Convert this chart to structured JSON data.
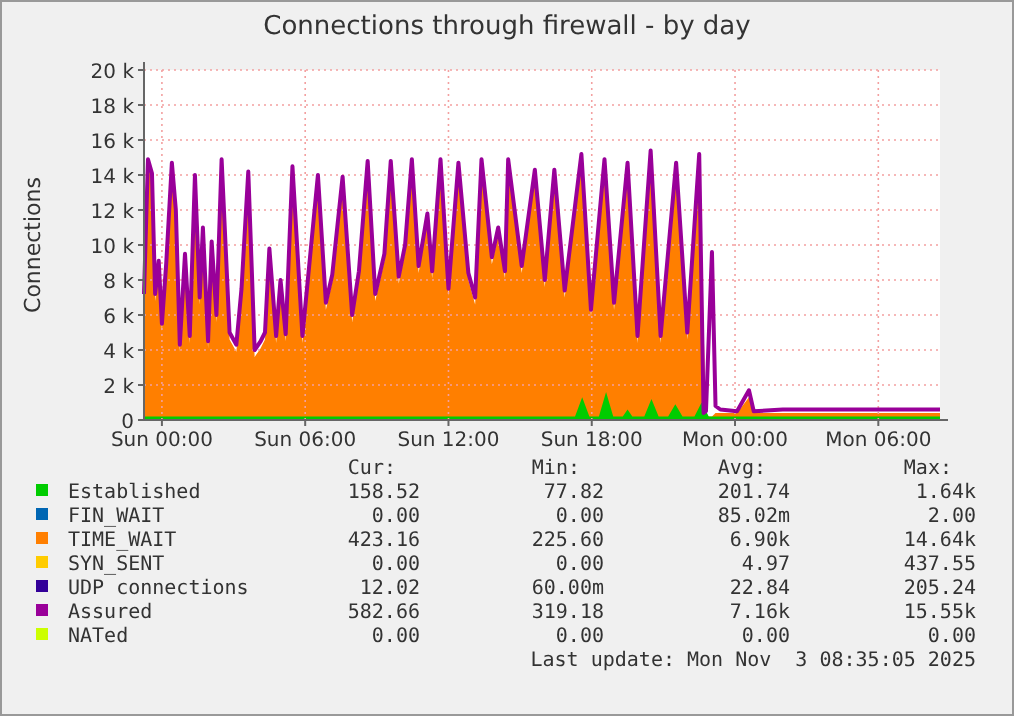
{
  "chart_data": {
    "type": "area",
    "title": "Connections through firewall - by day",
    "ylabel": "Connections",
    "xlim": [
      "2025-11-01T23:15",
      "2025-11-03T08:35"
    ],
    "xticks": [
      {
        "value": "2025-11-02T00:00",
        "label": "Sun 00:00"
      },
      {
        "value": "2025-11-02T06:00",
        "label": "Sun 06:00"
      },
      {
        "value": "2025-11-02T12:00",
        "label": "Sun 12:00"
      },
      {
        "value": "2025-11-02T18:00",
        "label": "Sun 18:00"
      },
      {
        "value": "2025-11-03T00:00",
        "label": "Mon 00:00"
      },
      {
        "value": "2025-11-03T06:00",
        "label": "Mon 06:00"
      }
    ],
    "ylim": [
      0,
      20000
    ],
    "yticks": [
      {
        "value": 0,
        "label": "0"
      },
      {
        "value": 2000,
        "label": "2 k"
      },
      {
        "value": 4000,
        "label": "4 k"
      },
      {
        "value": 6000,
        "label": "6 k"
      },
      {
        "value": 8000,
        "label": "8 k"
      },
      {
        "value": 10000,
        "label": "10 k"
      },
      {
        "value": 12000,
        "label": "12 k"
      },
      {
        "value": 14000,
        "label": "14 k"
      },
      {
        "value": 16000,
        "label": "16 k"
      },
      {
        "value": 18000,
        "label": "18 k"
      },
      {
        "value": 20000,
        "label": "20 k"
      }
    ],
    "grid": true,
    "legend": "bottom",
    "x": [
      "2025-11-01T23:15",
      "2025-11-01T23:25",
      "2025-11-01T23:35",
      "2025-11-01T23:43",
      "2025-11-01T23:52",
      "2025-11-02T00:00",
      "2025-11-02T00:11",
      "2025-11-02T00:25",
      "2025-11-02T00:35",
      "2025-11-02T00:45",
      "2025-11-02T00:58",
      "2025-11-02T01:10",
      "2025-11-02T01:23",
      "2025-11-02T01:35",
      "2025-11-02T01:43",
      "2025-11-02T01:56",
      "2025-11-02T02:05",
      "2025-11-02T02:17",
      "2025-11-02T02:30",
      "2025-11-02T02:50",
      "2025-11-02T03:07",
      "2025-11-02T03:20",
      "2025-11-02T03:37",
      "2025-11-02T03:53",
      "2025-11-02T04:08",
      "2025-11-02T04:19",
      "2025-11-02T04:30",
      "2025-11-02T04:47",
      "2025-11-02T04:58",
      "2025-11-02T05:11",
      "2025-11-02T05:28",
      "2025-11-02T05:53",
      "2025-11-02T06:10",
      "2025-11-02T06:32",
      "2025-11-02T06:52",
      "2025-11-02T07:08",
      "2025-11-02T07:34",
      "2025-11-02T07:58",
      "2025-11-02T08:15",
      "2025-11-02T08:37",
      "2025-11-02T08:56",
      "2025-11-02T09:19",
      "2025-11-02T09:35",
      "2025-11-02T09:55",
      "2025-11-02T10:11",
      "2025-11-02T10:28",
      "2025-11-02T10:45",
      "2025-11-02T11:07",
      "2025-11-02T11:19",
      "2025-11-02T11:40",
      "2025-11-02T12:00",
      "2025-11-02T12:25",
      "2025-11-02T12:50",
      "2025-11-02T13:07",
      "2025-11-02T13:23",
      "2025-11-02T13:49",
      "2025-11-02T14:05",
      "2025-11-02T14:22",
      "2025-11-02T14:30",
      "2025-11-02T15:04",
      "2025-11-02T15:37",
      "2025-11-02T16:02",
      "2025-11-02T16:26",
      "2025-11-02T16:52",
      "2025-11-02T17:34",
      "2025-11-02T17:58",
      "2025-11-02T18:32",
      "2025-11-02T18:56",
      "2025-11-02T19:30",
      "2025-11-02T19:55",
      "2025-11-02T20:28",
      "2025-11-02T20:53",
      "2025-11-02T21:32",
      "2025-11-02T22:00",
      "2025-11-02T22:30",
      "2025-11-02T22:41",
      "2025-11-02T22:47",
      "2025-11-02T23:02",
      "2025-11-02T23:11",
      "2025-11-02T23:23",
      "2025-11-03T00:05",
      "2025-11-03T00:35",
      "2025-11-03T00:47",
      "2025-11-03T02:00",
      "2025-11-03T04:00",
      "2025-11-03T06:00",
      "2025-11-03T08:35"
    ],
    "series": [
      {
        "name": "Established",
        "type": "area",
        "color": "#00cc00",
        "x": [
          "2025-11-01T23:15",
          "2025-11-02T17:18",
          "2025-11-02T17:36",
          "2025-11-02T17:54",
          "2025-11-02T18:18",
          "2025-11-02T18:36",
          "2025-11-02T18:54",
          "2025-11-02T19:18",
          "2025-11-02T19:30",
          "2025-11-02T19:42",
          "2025-11-02T20:12",
          "2025-11-02T20:30",
          "2025-11-02T20:48",
          "2025-11-02T21:12",
          "2025-11-02T21:30",
          "2025-11-02T21:48",
          "2025-11-02T22:18",
          "2025-11-02T22:36",
          "2025-11-02T22:54",
          "2025-11-03T08:35"
        ],
        "values": [
          200,
          200,
          1300,
          200,
          200,
          1600,
          200,
          200,
          600,
          200,
          200,
          1200,
          200,
          200,
          900,
          200,
          200,
          1000,
          200,
          200
        ]
      },
      {
        "name": "FIN_WAIT",
        "type": "line",
        "color": "#0066b3",
        "values": [
          null,
          null,
          null,
          null,
          null,
          null,
          null,
          null,
          null,
          null,
          null,
          null,
          null,
          null,
          null,
          null,
          null,
          null,
          null,
          null,
          null,
          null,
          null,
          null,
          null,
          null,
          null,
          null,
          null,
          null,
          null,
          null,
          null,
          null,
          null,
          null,
          null,
          null,
          null,
          null,
          null,
          null,
          null,
          null,
          null,
          null,
          null,
          null,
          null,
          null,
          null,
          null,
          null,
          null,
          null,
          null,
          null,
          null,
          null,
          null,
          null,
          null,
          null,
          null,
          null,
          null,
          null,
          null,
          null,
          null,
          null,
          null,
          null,
          null,
          null,
          null,
          null,
          null,
          null,
          null,
          null,
          null,
          null,
          null,
          null,
          null,
          null
        ]
      },
      {
        "name": "TIME_WAIT",
        "type": "area",
        "color": "#ff7f00",
        "values": [
          6900,
          14500,
          13700,
          6800,
          8700,
          5100,
          8600,
          14300,
          11600,
          3900,
          9100,
          4400,
          13600,
          6600,
          10600,
          4100,
          9800,
          5600,
          14500,
          4600,
          3900,
          7100,
          13800,
          3600,
          4100,
          4600,
          9400,
          4400,
          7600,
          4500,
          14100,
          4400,
          8400,
          13600,
          6300,
          7900,
          13500,
          5600,
          8100,
          14400,
          6800,
          9100,
          14400,
          7800,
          9600,
          14500,
          8400,
          11400,
          8100,
          14500,
          7100,
          14300,
          8000,
          6600,
          14500,
          8900,
          10600,
          8100,
          14500,
          8400,
          13900,
          7600,
          13900,
          7000,
          14600,
          5900,
          14500,
          6300,
          14300,
          4400,
          14600,
          4400,
          14300,
          4600,
          14600,
          null,
          200,
          200,
          400,
          400,
          400,
          1300,
          400,
          400,
          400,
          400,
          400
        ]
      },
      {
        "name": "SYN_SENT",
        "type": "line",
        "color": "#ffcc00",
        "values": [
          null,
          null,
          null,
          null,
          null,
          null,
          null,
          null,
          null,
          null,
          null,
          null,
          null,
          null,
          null,
          null,
          null,
          null,
          null,
          null,
          null,
          null,
          null,
          null,
          null,
          null,
          null,
          null,
          null,
          null,
          null,
          null,
          null,
          null,
          null,
          null,
          null,
          null,
          null,
          null,
          null,
          null,
          null,
          null,
          null,
          null,
          null,
          null,
          null,
          null,
          null,
          null,
          null,
          null,
          null,
          null,
          null,
          null,
          null,
          null,
          null,
          null,
          null,
          null,
          null,
          null,
          null,
          null,
          null,
          null,
          null,
          null,
          null,
          null,
          null,
          null,
          null,
          null,
          null,
          null,
          null,
          null,
          null,
          null,
          null,
          null,
          null
        ]
      },
      {
        "name": "UDP connections",
        "type": "line",
        "color": "#330099",
        "values": [
          null,
          null,
          null,
          null,
          null,
          null,
          null,
          null,
          null,
          null,
          null,
          null,
          null,
          null,
          null,
          null,
          null,
          null,
          null,
          null,
          null,
          null,
          null,
          null,
          null,
          null,
          null,
          null,
          null,
          null,
          null,
          null,
          null,
          null,
          null,
          null,
          null,
          null,
          null,
          null,
          null,
          null,
          null,
          null,
          null,
          null,
          null,
          null,
          null,
          null,
          null,
          null,
          null,
          null,
          null,
          null,
          null,
          null,
          null,
          null,
          null,
          null,
          null,
          null,
          null,
          null,
          null,
          null,
          null,
          null,
          null,
          null,
          null,
          null,
          null,
          null,
          null,
          null,
          null,
          null,
          null,
          null,
          null,
          null,
          null,
          null,
          null
        ]
      },
      {
        "name": "Assured",
        "type": "line",
        "color": "#990099",
        "values": [
          7200,
          14900,
          14100,
          7200,
          9100,
          5500,
          9000,
          14700,
          12000,
          4300,
          9500,
          4800,
          14000,
          7000,
          11000,
          4500,
          10200,
          6000,
          14900,
          5000,
          4300,
          7500,
          14200,
          4000,
          4500,
          5000,
          9800,
          4800,
          8000,
          4900,
          14500,
          4800,
          8800,
          14000,
          6700,
          8300,
          13900,
          6000,
          8500,
          14800,
          7200,
          9500,
          14800,
          8200,
          10000,
          14900,
          8800,
          11800,
          8500,
          14900,
          7500,
          14700,
          8400,
          7000,
          14900,
          9300,
          11000,
          8500,
          14900,
          8800,
          14300,
          8000,
          14300,
          7400,
          15200,
          6300,
          14900,
          6700,
          14700,
          4800,
          15400,
          4800,
          14700,
          5000,
          15200,
          400,
          500,
          9600,
          800,
          600,
          500,
          1700,
          500,
          600,
          600,
          600,
          600
        ]
      },
      {
        "name": "NATed",
        "type": "line",
        "color": "#ccff00",
        "values": [
          null,
          null,
          null,
          null,
          null,
          null,
          null,
          null,
          null,
          null,
          null,
          null,
          null,
          null,
          null,
          null,
          null,
          null,
          null,
          null,
          null,
          null,
          null,
          null,
          null,
          null,
          null,
          null,
          null,
          null,
          null,
          null,
          null,
          null,
          null,
          null,
          null,
          null,
          null,
          null,
          null,
          null,
          null,
          null,
          null,
          null,
          null,
          null,
          null,
          null,
          null,
          null,
          null,
          null,
          null,
          null,
          null,
          null,
          null,
          null,
          null,
          null,
          null,
          null,
          null,
          null,
          null,
          null,
          null,
          null,
          null,
          null,
          null,
          null,
          null,
          null,
          null,
          null,
          null,
          null,
          null,
          null,
          null,
          null,
          null,
          null,
          null
        ]
      }
    ],
    "annotations": [
      "Cur:",
      "Min:",
      "Avg:",
      "Max:",
      "158.52",
      "77.82",
      "201.74",
      "1.64k",
      "0.00",
      "0.00",
      "85.02m",
      "2.00",
      "423.16",
      "225.60",
      "6.90k",
      "14.64k",
      "0.00",
      "0.00",
      "4.97",
      "437.55",
      "12.02",
      "60.00m",
      "22.84",
      "205.24",
      "582.66",
      "319.18",
      "7.16k",
      "15.55k",
      "0.00",
      "0.00",
      "0.00",
      "0.00",
      "Last update: Mon Nov  3 08:35:05 2025"
    ]
  }
}
